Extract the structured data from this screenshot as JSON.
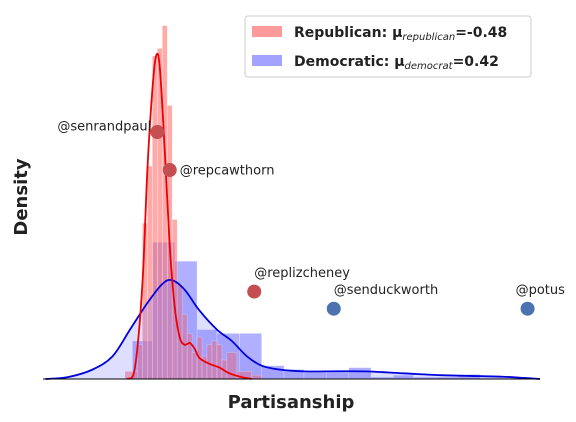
{
  "chart_data": {
    "type": "histogram",
    "xlabel": "Partisanship",
    "ylabel": "Density",
    "xlim": [
      -1.0,
      1.0
    ],
    "ylim": [
      0,
      9.5
    ],
    "grid": false,
    "legend_placement": "top-right",
    "legend": [
      {
        "key": "republican",
        "prefix": "Republican: μ",
        "sub": "republican",
        "suffix": "=-0.48",
        "color": "#ff6f6f"
      },
      {
        "key": "democratic",
        "prefix": "Democratic: μ",
        "sub": "democrat",
        "suffix": "=0.42",
        "color": "#7b7bff"
      }
    ],
    "series": [
      {
        "name": "Republican",
        "bar_color": "#ff6f6f",
        "line_color": "#ee0000",
        "bins": [
          {
            "x0": -0.67,
            "x1": -0.62,
            "y": 0.2
          },
          {
            "x0": -0.62,
            "x1": -0.6,
            "y": 0.9
          },
          {
            "x0": -0.6,
            "x1": -0.58,
            "y": 4.1
          },
          {
            "x0": -0.58,
            "x1": -0.56,
            "y": 5.6
          },
          {
            "x0": -0.56,
            "x1": -0.54,
            "y": 8.5
          },
          {
            "x0": -0.54,
            "x1": -0.52,
            "y": 8.7
          },
          {
            "x0": -0.52,
            "x1": -0.5,
            "y": 9.3
          },
          {
            "x0": -0.5,
            "x1": -0.48,
            "y": 7.2
          },
          {
            "x0": -0.48,
            "x1": -0.46,
            "y": 4.2
          },
          {
            "x0": -0.46,
            "x1": -0.44,
            "y": 2.5
          },
          {
            "x0": -0.44,
            "x1": -0.42,
            "y": 1.7
          },
          {
            "x0": -0.42,
            "x1": -0.4,
            "y": 1.2
          },
          {
            "x0": -0.4,
            "x1": -0.38,
            "y": 0.7
          },
          {
            "x0": -0.38,
            "x1": -0.36,
            "y": 1.1
          },
          {
            "x0": -0.36,
            "x1": -0.34,
            "y": 0.6
          },
          {
            "x0": -0.34,
            "x1": -0.32,
            "y": 0.9
          },
          {
            "x0": -0.32,
            "x1": -0.3,
            "y": 1.0
          },
          {
            "x0": -0.3,
            "x1": -0.28,
            "y": 0.9
          },
          {
            "x0": -0.28,
            "x1": -0.26,
            "y": 0.5
          },
          {
            "x0": -0.26,
            "x1": -0.22,
            "y": 0.7
          },
          {
            "x0": -0.22,
            "x1": -0.16,
            "y": 0.2
          },
          {
            "x0": -0.16,
            "x1": -0.12,
            "y": 0.1
          }
        ],
        "kde": [
          [
            -0.66,
            0
          ],
          [
            -0.63,
            0.3
          ],
          [
            -0.6,
            2.5
          ],
          [
            -0.58,
            5.5
          ],
          [
            -0.56,
            7.6
          ],
          [
            -0.545,
            8.5
          ],
          [
            -0.53,
            8.2
          ],
          [
            -0.51,
            6.0
          ],
          [
            -0.49,
            3.5
          ],
          [
            -0.47,
            1.9
          ],
          [
            -0.45,
            1.1
          ],
          [
            -0.43,
            0.9
          ],
          [
            -0.41,
            0.95
          ],
          [
            -0.39,
            0.8
          ],
          [
            -0.37,
            0.55
          ],
          [
            -0.33,
            0.4
          ],
          [
            -0.29,
            0.3
          ],
          [
            -0.25,
            0.15
          ],
          [
            -0.2,
            0.05
          ],
          [
            -0.16,
            0
          ]
        ]
      },
      {
        "name": "Democratic",
        "bar_color": "#7b7bff",
        "line_color": "#0000dd",
        "bins": [
          {
            "x0": -0.73,
            "x1": -0.64,
            "y": 0
          },
          {
            "x0": -0.64,
            "x1": -0.56,
            "y": 1.0
          },
          {
            "x0": -0.56,
            "x1": -0.47,
            "y": 3.6
          },
          {
            "x0": -0.47,
            "x1": -0.38,
            "y": 3.1
          },
          {
            "x0": -0.38,
            "x1": -0.3,
            "y": 1.3
          },
          {
            "x0": -0.3,
            "x1": -0.21,
            "y": 1.2
          },
          {
            "x0": -0.21,
            "x1": -0.12,
            "y": 1.2
          },
          {
            "x0": -0.12,
            "x1": -0.03,
            "y": 0.35
          },
          {
            "x0": -0.03,
            "x1": 0.05,
            "y": 0.25
          },
          {
            "x0": 0.05,
            "x1": 0.14,
            "y": 0.17
          },
          {
            "x0": 0.14,
            "x1": 0.23,
            "y": 0.17
          },
          {
            "x0": 0.23,
            "x1": 0.32,
            "y": 0.3
          },
          {
            "x0": 0.32,
            "x1": 0.41,
            "y": 0.05
          },
          {
            "x0": 0.41,
            "x1": 0.49,
            "y": 0.1
          },
          {
            "x0": 0.49,
            "x1": 0.58,
            "y": 0.05
          },
          {
            "x0": 0.58,
            "x1": 0.67,
            "y": 0.05
          },
          {
            "x0": 0.67,
            "x1": 0.76,
            "y": 0.12
          },
          {
            "x0": 0.76,
            "x1": 0.85,
            "y": 0.02
          }
        ],
        "kde": [
          [
            -0.99,
            0
          ],
          [
            -0.9,
            0.05
          ],
          [
            -0.8,
            0.25
          ],
          [
            -0.72,
            0.6
          ],
          [
            -0.65,
            1.3
          ],
          [
            -0.58,
            2.0
          ],
          [
            -0.52,
            2.5
          ],
          [
            -0.48,
            2.6
          ],
          [
            -0.43,
            2.35
          ],
          [
            -0.37,
            1.8
          ],
          [
            -0.3,
            1.3
          ],
          [
            -0.24,
            1.0
          ],
          [
            -0.18,
            0.6
          ],
          [
            -0.12,
            0.35
          ],
          [
            -0.05,
            0.25
          ],
          [
            0.05,
            0.2
          ],
          [
            0.15,
            0.2
          ],
          [
            0.3,
            0.2
          ],
          [
            0.45,
            0.15
          ],
          [
            0.6,
            0.1
          ],
          [
            0.72,
            0.08
          ],
          [
            0.85,
            0.06
          ],
          [
            0.93,
            0.03
          ],
          [
            1.0,
            0
          ]
        ]
      }
    ],
    "annotations": [
      {
        "label": "@senrandpaul",
        "x": -0.54,
        "y": 6.5,
        "party": "republican",
        "label_side": "left",
        "label_dy": -9
      },
      {
        "label": "@repcawthorn",
        "x": -0.49,
        "y": 5.5,
        "party": "republican",
        "label_side": "right",
        "label_dy": 0
      },
      {
        "label": "@replizcheney",
        "x": -0.15,
        "y": 2.3,
        "party": "republican",
        "label_side": "above",
        "label_dy": -18
      },
      {
        "label": "@senduckworth",
        "x": 0.17,
        "y": 1.85,
        "party": "democratic",
        "label_side": "above",
        "label_dy": -18
      },
      {
        "label": "@potus",
        "x": 0.95,
        "y": 1.85,
        "party": "democratic",
        "label_side": "above",
        "label_dy": -18
      }
    ],
    "point_colors": {
      "republican": "#c44e52",
      "democratic": "#4c72b0"
    }
  }
}
